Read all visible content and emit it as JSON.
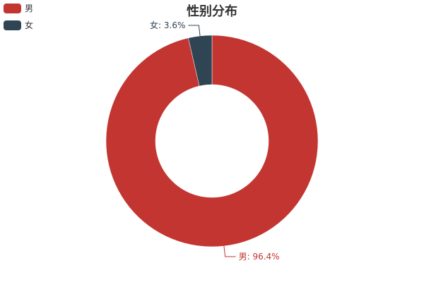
{
  "chart_data": {
    "type": "pie",
    "donut": true,
    "title": "性别分布",
    "legend_position": "top-left",
    "categories": [
      "男",
      "女"
    ],
    "values": [
      96.4,
      3.6
    ],
    "unit": "%",
    "colors": [
      "#c23531",
      "#2f4554"
    ],
    "labels": [
      "男: 96.4%",
      "女: 3.6%"
    ]
  }
}
